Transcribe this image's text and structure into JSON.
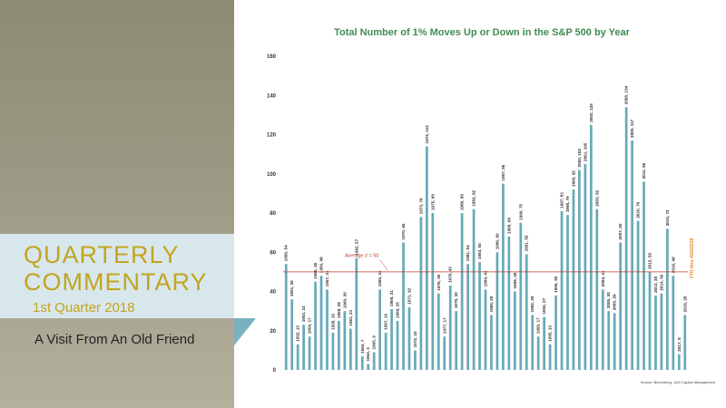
{
  "banner": {
    "title_line1": "QUARTERLY",
    "title_line2": "COMMENTARY",
    "subtitle": "1st Quarter 2018",
    "tagline": "A Visit From An Old Friend"
  },
  "source": "Source: Bloomberg, JAG Capital Management",
  "colors": {
    "bar": "#68a9b8",
    "average_line": "#c0392b",
    "ytd_bar": "#e08a2e",
    "title": "#3f8d52",
    "banner_text": "#c2a51f"
  },
  "chart_data": {
    "type": "bar",
    "title": "Total Number of 1% Moves Up or Down in the S&P 500 by Year",
    "xlabel": "",
    "ylabel": "",
    "ylim": [
      0,
      160
    ],
    "yticks": [
      0,
      20,
      40,
      60,
      80,
      100,
      120,
      140,
      160
    ],
    "grid": false,
    "categories": [
      "1950",
      "1951",
      "1952",
      "1953",
      "1954",
      "1955",
      "1956",
      "1957",
      "1958",
      "1959",
      "1960",
      "1961",
      "1962",
      "1963",
      "1964",
      "1965",
      "1966",
      "1967",
      "1968",
      "1969",
      "1970",
      "1971",
      "1972",
      "1973",
      "1974",
      "1975",
      "1976",
      "1977",
      "1978",
      "1979",
      "1980",
      "1981",
      "1982",
      "1983",
      "1984",
      "1985",
      "1986",
      "1987",
      "1988",
      "1989",
      "1990",
      "1991",
      "1992",
      "1993",
      "1994",
      "1995",
      "1996",
      "1997",
      "1998",
      "1999",
      "2000",
      "2001",
      "2002",
      "2003",
      "2004",
      "2005",
      "2006",
      "2007",
      "2008",
      "2009",
      "2010",
      "2011",
      "2012",
      "2013",
      "2014",
      "2015",
      "2016",
      "2017",
      "2018"
    ],
    "values": [
      54,
      36,
      13,
      23,
      17,
      45,
      48,
      41,
      19,
      25,
      30,
      21,
      57,
      7,
      3,
      9,
      41,
      19,
      31,
      25,
      65,
      32,
      10,
      78,
      114,
      80,
      39,
      17,
      43,
      30,
      80,
      54,
      82,
      55,
      41,
      28,
      60,
      95,
      68,
      40,
      75,
      59,
      28,
      17,
      27,
      13,
      38,
      81,
      79,
      92,
      102,
      105,
      125,
      82,
      41,
      30,
      29,
      65,
      134,
      117,
      76,
      96,
      50,
      38,
      39,
      72,
      48,
      8,
      28
    ],
    "bar_labels": [
      "1950, 54",
      "1951, 36",
      "1952, 13",
      "1953, 23",
      "1954, 17",
      "1955, 45",
      "1956, 48",
      "1957, 41",
      "1958, 19",
      "1959, 25",
      "1960, 30",
      "1961, 21",
      "1962, 57",
      "1963, 7",
      "1964, 3",
      "1965, 9",
      "1966, 41",
      "1967, 19",
      "1968, 31",
      "1969, 25",
      "1970, 65",
      "1971, 32",
      "1972, 10",
      "1973, 78",
      "1974, 114",
      "1975, 80",
      "1976, 39",
      "1977, 17",
      "1978, 43",
      "1979, 30",
      "1980, 80",
      "1981, 54",
      "1982, 82",
      "1983, 55",
      "1984, 41",
      "1985, 28",
      "1986, 60",
      "1987, 95",
      "1988, 68",
      "1989, 40",
      "1990, 75",
      "1991, 59",
      "1992, 28",
      "1993, 17",
      "1994, 27",
      "1995, 13",
      "1996, 38",
      "1997, 81",
      "1998, 79",
      "1999, 92",
      "2000, 102",
      "2001, 105",
      "2002, 125",
      "2003, 82",
      "2004, 41",
      "2005, 30",
      "2006, 29",
      "2007, 65",
      "2008, 134",
      "2009, 117",
      "2010, 76",
      "2011, 96",
      "2012, 50",
      "2013, 38",
      "2014, 39",
      "2015, 72",
      "2016, 48",
      "2017, 8",
      "2018, 28"
    ],
    "average": {
      "value": 50,
      "label": "Average # = 50"
    },
    "ytd": {
      "value": 28,
      "label": "YTD thru 4/10/2018"
    }
  }
}
